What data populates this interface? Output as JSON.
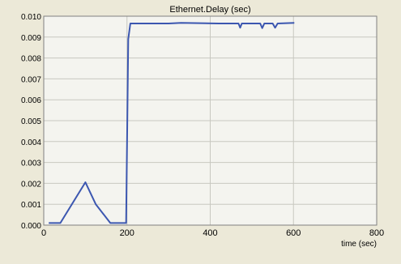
{
  "colors": {
    "background": "#ece9d8",
    "plot_background": "#f4f4ef",
    "grid": "#c8c8c0",
    "frame": "#808080",
    "series": "#3c57b0"
  },
  "chart_data": {
    "type": "line",
    "title": "Ethernet.Delay (sec)",
    "xlabel": "time (sec)",
    "ylabel": "",
    "xlim": [
      0,
      800
    ],
    "ylim": [
      0,
      0.01
    ],
    "x_ticks": [
      0,
      200,
      400,
      600,
      800
    ],
    "y_ticks": [
      0.0,
      0.001,
      0.002,
      0.003,
      0.004,
      0.005,
      0.006,
      0.007,
      0.008,
      0.009,
      0.01
    ],
    "x_tick_labels": [
      "0",
      "200",
      "400",
      "600",
      "800"
    ],
    "y_tick_labels": [
      "0.000",
      "0.001",
      "0.002",
      "0.003",
      "0.004",
      "0.005",
      "0.006",
      "0.007",
      "0.008",
      "0.009",
      "0.010"
    ],
    "grid": true,
    "series": [
      {
        "x": [
          12,
          40,
          100,
          125,
          160,
          198,
          203,
          208,
          300,
          330,
          420,
          468,
          472,
          476,
          520,
          525,
          530,
          550,
          556,
          562,
          602
        ],
        "y": [
          0.0001,
          0.0001,
          0.00205,
          0.001,
          0.0001,
          0.0001,
          0.0089,
          0.00965,
          0.00965,
          0.00968,
          0.00965,
          0.00965,
          0.00945,
          0.00965,
          0.00965,
          0.00943,
          0.00965,
          0.00965,
          0.00945,
          0.00965,
          0.00968
        ]
      }
    ]
  }
}
